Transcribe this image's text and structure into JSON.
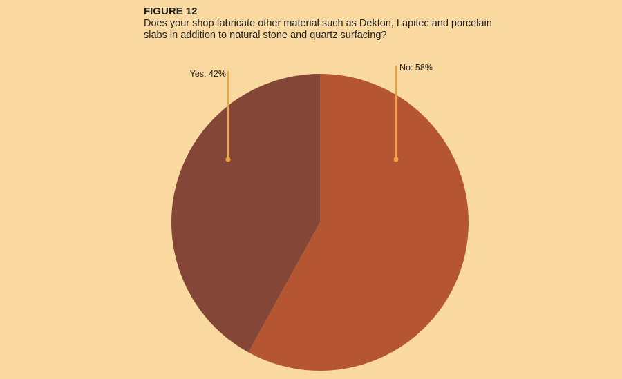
{
  "chart_data": {
    "type": "pie",
    "title": "FIGURE 12",
    "subtitle": [
      "Does your shop fabricate other material such as Dekton, Lapitec and porcelain",
      "slabs in addition to natural stone and quartz surfacing?"
    ],
    "categories": [
      "Yes",
      "No"
    ],
    "values": [
      42,
      58
    ],
    "value_labels": [
      "Yes: 42%",
      "No: 58%"
    ],
    "colors": [
      "#844637",
      "#b55532"
    ]
  }
}
